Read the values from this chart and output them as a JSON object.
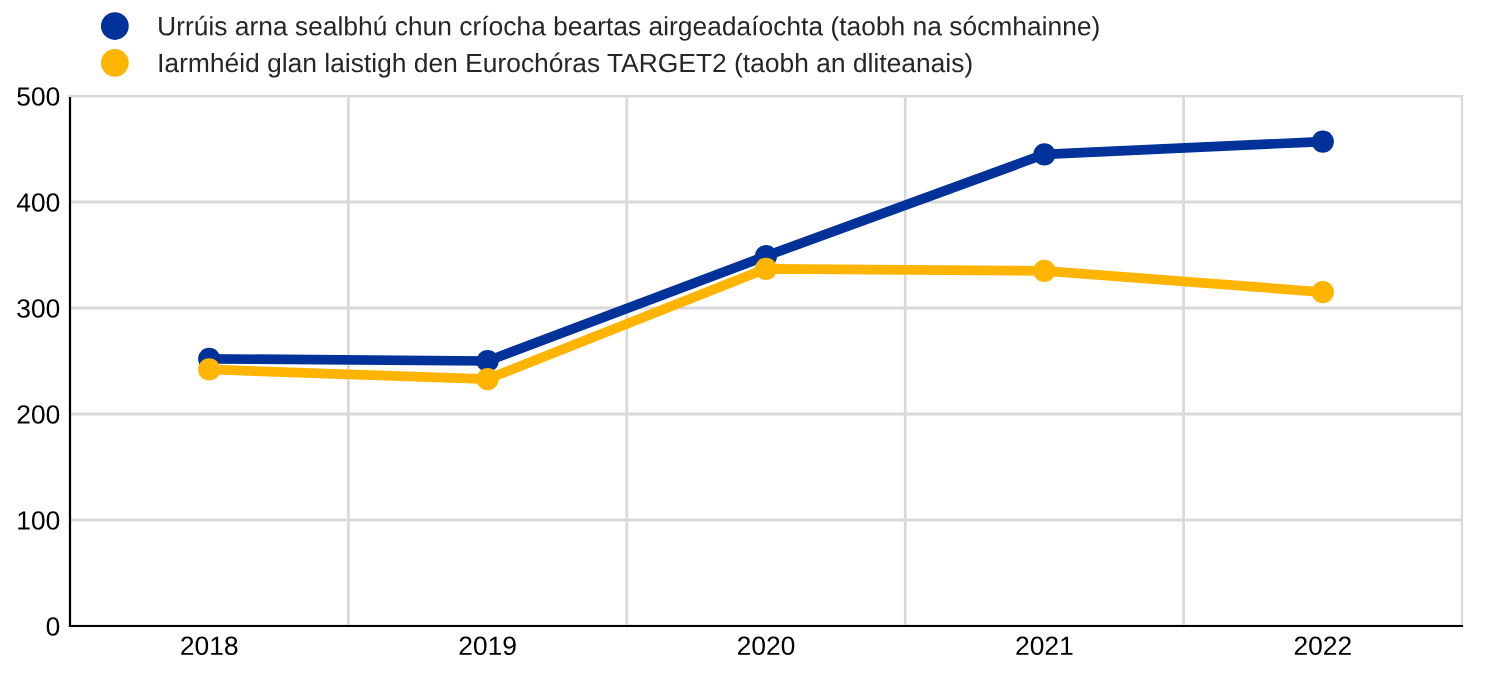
{
  "chart_data": {
    "type": "line",
    "categories": [
      "2018",
      "2019",
      "2020",
      "2021",
      "2022"
    ],
    "series": [
      {
        "name": "Urrúis arna sealbhú chun críocha beartas airgeadaíochta (taobh na sócmhainne)",
        "color": "#003299",
        "values": [
          252,
          250,
          349,
          445,
          457
        ]
      },
      {
        "name": "Iarmhéid glan laistigh den Eurochóras TARGET2 (taobh an dliteanais)",
        "color": "#ffb400",
        "values": [
          242,
          233,
          337,
          335,
          315
        ]
      }
    ],
    "ylim": [
      0,
      500
    ],
    "yticks": [
      0,
      100,
      200,
      300,
      400,
      500
    ],
    "grid": true,
    "legend": "top left",
    "marker": "circle",
    "line_style": "solid"
  }
}
